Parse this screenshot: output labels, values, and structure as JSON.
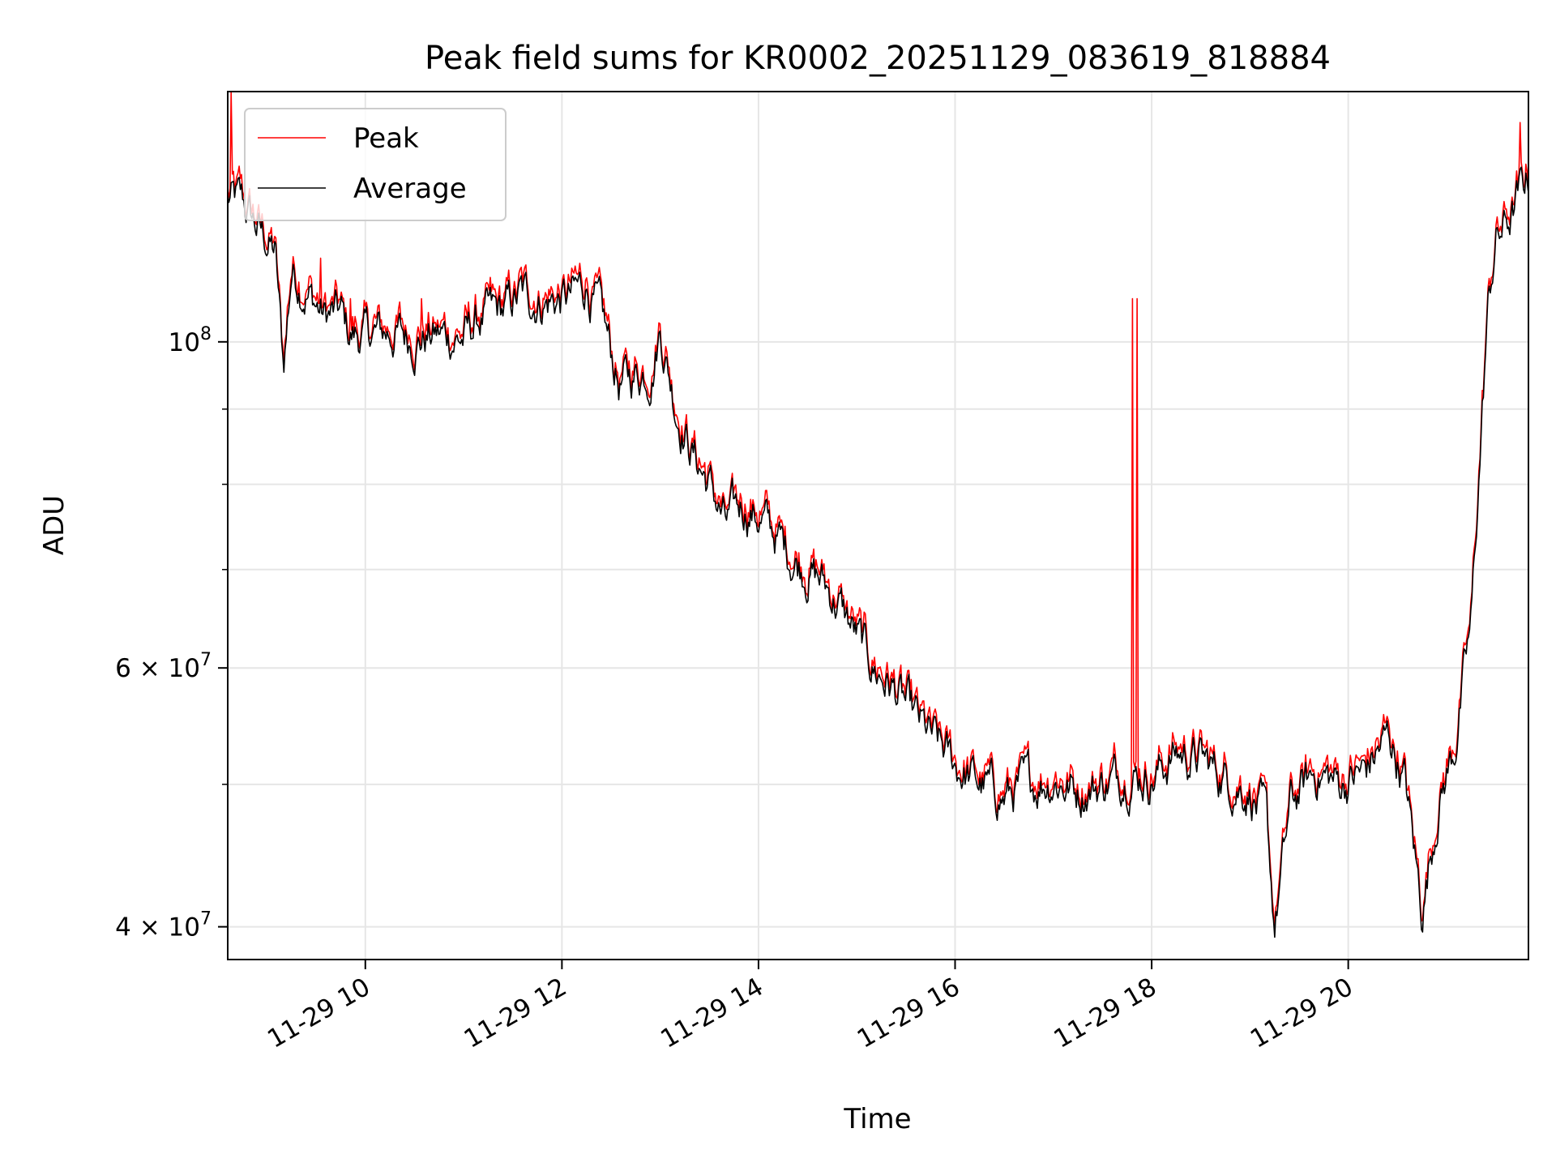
{
  "chart_data": {
    "type": "line",
    "title": "Peak field sums for KR0002_20251129_083619_818884",
    "xlabel": "Time",
    "ylabel": "ADU",
    "yscale": "log",
    "grid": true,
    "legend_position": "upper-left",
    "xlim": [
      "11-29 08:36",
      "11-29 21:50"
    ],
    "ylim": [
      38000000,
      148000000
    ],
    "x_ticks": [
      "11-29 10",
      "11-29 12",
      "11-29 14",
      "11-29 16",
      "11-29 18",
      "11-29 20"
    ],
    "y_ticks": [
      {
        "value": 40000000,
        "label": "4 × 10",
        "exp": "7"
      },
      {
        "value": 60000000,
        "label": "6 × 10",
        "exp": "7"
      },
      {
        "value": 100000000,
        "label": "10",
        "exp": "8"
      }
    ],
    "y_minor_ticks": [
      50000000,
      70000000,
      80000000,
      90000000
    ],
    "series": [
      {
        "name": "Peak",
        "color": "#ff0000"
      },
      {
        "name": "Average",
        "color": "#000000"
      }
    ],
    "average_points": [
      [
        "11-29 08:36",
        125000000
      ],
      [
        "11-29 08:45",
        124000000
      ],
      [
        "11-29 08:55",
        119000000
      ],
      [
        "11-29 09:05",
        115000000
      ],
      [
        "11-29 09:10",
        96000000
      ],
      [
        "11-29 09:15",
        112000000
      ],
      [
        "11-29 09:25",
        108000000
      ],
      [
        "11-29 09:35",
        104000000
      ],
      [
        "11-29 09:45",
        104500000
      ],
      [
        "11-29 09:50",
        101000000
      ],
      [
        "11-29 10:00",
        101000000
      ],
      [
        "11-29 10:15",
        101500000
      ],
      [
        "11-29 10:30",
        100500000
      ],
      [
        "11-29 10:45",
        101000000
      ],
      [
        "11-29 11:00",
        100500000
      ],
      [
        "11-29 11:10",
        103500000
      ],
      [
        "11-29 11:25",
        105000000
      ],
      [
        "11-29 11:35",
        107500000
      ],
      [
        "11-29 11:50",
        106500000
      ],
      [
        "11-29 12:05",
        107000000
      ],
      [
        "11-29 12:15",
        109500000
      ],
      [
        "11-29 12:25",
        103000000
      ],
      [
        "11-29 12:35",
        93500000
      ],
      [
        "11-29 12:45",
        95000000
      ],
      [
        "11-29 12:55",
        96000000
      ],
      [
        "11-29 13:00",
        102000000
      ],
      [
        "11-29 13:10",
        90000000
      ],
      [
        "11-29 13:20",
        84000000
      ],
      [
        "11-29 13:30",
        80000000
      ],
      [
        "11-29 13:40",
        75000000
      ],
      [
        "11-29 13:50",
        77500000
      ],
      [
        "11-29 14:00",
        76000000
      ],
      [
        "11-29 14:10",
        74000000
      ],
      [
        "11-29 14:20",
        71500000
      ],
      [
        "11-29 14:30",
        70000000
      ],
      [
        "11-29 14:40",
        68500000
      ],
      [
        "11-29 14:50",
        66000000
      ],
      [
        "11-29 15:00",
        63000000
      ],
      [
        "11-29 15:10",
        60000000
      ],
      [
        "11-29 15:20",
        58500000
      ],
      [
        "11-29 15:30",
        56500000
      ],
      [
        "11-29 15:40",
        54500000
      ],
      [
        "11-29 15:50",
        53000000
      ],
      [
        "11-29 16:00",
        51500000
      ],
      [
        "11-29 16:15",
        50000000
      ],
      [
        "11-29 16:30",
        49000000
      ],
      [
        "11-29 16:45",
        50000000
      ],
      [
        "11-29 17:00",
        50500000
      ],
      [
        "11-29 17:15",
        49500000
      ],
      [
        "11-29 17:30",
        50000000
      ],
      [
        "11-29 17:45",
        51000000
      ],
      [
        "11-29 18:00",
        50500000
      ],
      [
        "11-29 18:15",
        52500000
      ],
      [
        "11-29 18:30",
        52000000
      ],
      [
        "11-29 18:45",
        50500000
      ],
      [
        "11-29 19:00",
        49500000
      ],
      [
        "11-29 19:10",
        47000000
      ],
      [
        "11-29 19:15",
        40000000
      ],
      [
        "11-29 19:25",
        48500000
      ],
      [
        "11-29 19:40",
        51000000
      ],
      [
        "11-29 19:55",
        50000000
      ],
      [
        "11-29 20:10",
        51000000
      ],
      [
        "11-29 20:25",
        54000000
      ],
      [
        "11-29 20:35",
        50000000
      ],
      [
        "11-29 20:45",
        41000000
      ],
      [
        "11-29 20:55",
        48500000
      ],
      [
        "11-29 21:05",
        53000000
      ],
      [
        "11-29 21:15",
        64000000
      ],
      [
        "11-29 21:20",
        82000000
      ],
      [
        "11-29 21:25",
        104000000
      ],
      [
        "11-29 21:30",
        117000000
      ],
      [
        "11-29 21:40",
        122000000
      ],
      [
        "11-29 21:50",
        130000000
      ]
    ],
    "peak_spikes": [
      [
        "11-29 08:38",
        148000000
      ],
      [
        "11-29 09:33",
        114000000
      ],
      [
        "11-29 09:51",
        107000000
      ],
      [
        "11-29 10:34",
        107000000
      ],
      [
        "11-29 17:48",
        107000000
      ],
      [
        "11-29 17:51",
        107000000
      ],
      [
        "11-29 21:45",
        141000000
      ]
    ]
  }
}
